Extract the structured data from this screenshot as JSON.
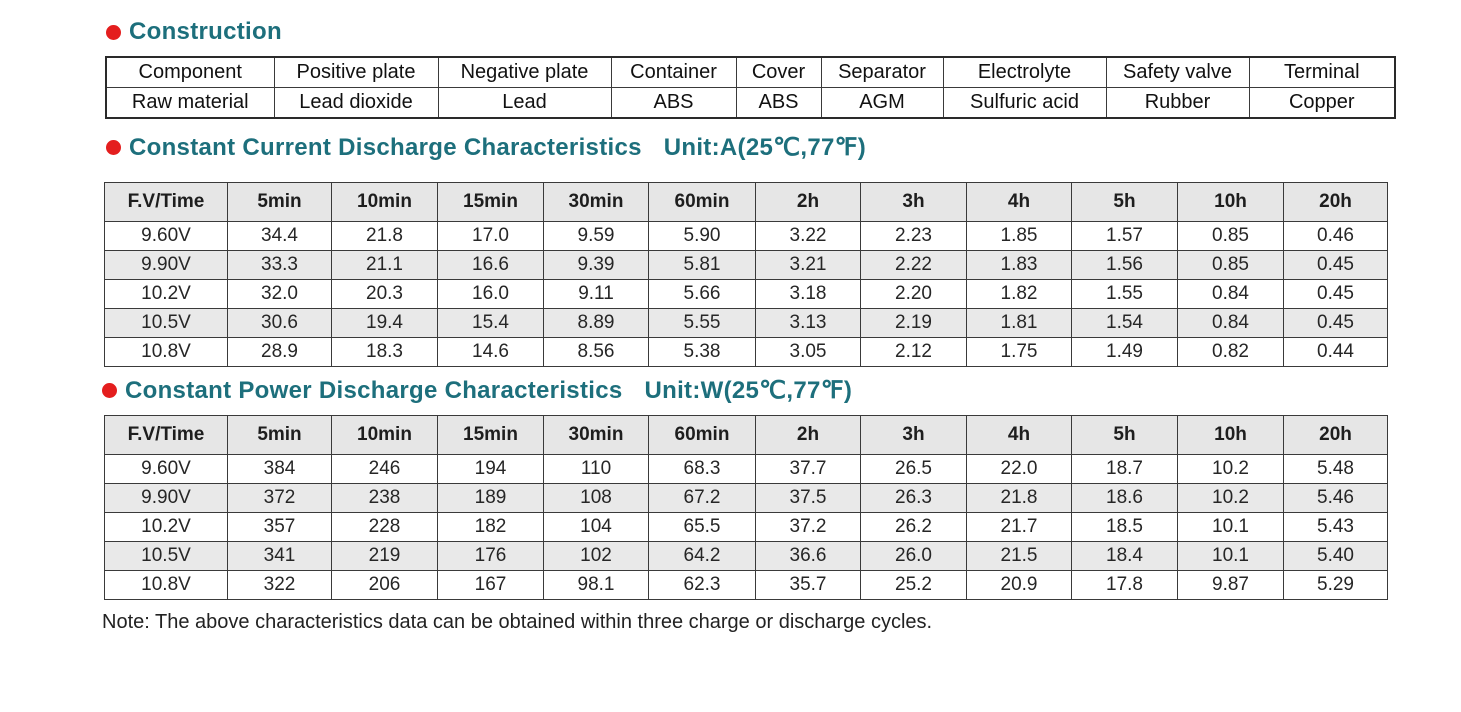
{
  "construction": {
    "title": "Construction",
    "components_header": [
      "Component",
      "Positive plate",
      "Negative plate",
      "Container",
      "Cover",
      "Separator",
      "Electrolyte",
      "Safety valve",
      "Terminal"
    ],
    "materials_row": [
      "Raw material",
      "Lead dioxide",
      "Lead",
      "ABS",
      "ABS",
      "AGM",
      "Sulfuric acid",
      "Rubber",
      "Copper"
    ]
  },
  "constant_current": {
    "title": "Constant Current Discharge Characteristics",
    "unit": "Unit:A(25℃,77℉)",
    "columns": [
      "F.V/Time",
      "5min",
      "10min",
      "15min",
      "30min",
      "60min",
      "2h",
      "3h",
      "4h",
      "5h",
      "10h",
      "20h"
    ],
    "rows": [
      [
        "9.60V",
        "34.4",
        "21.8",
        "17.0",
        "9.59",
        "5.90",
        "3.22",
        "2.23",
        "1.85",
        "1.57",
        "0.85",
        "0.46"
      ],
      [
        "9.90V",
        "33.3",
        "21.1",
        "16.6",
        "9.39",
        "5.81",
        "3.21",
        "2.22",
        "1.83",
        "1.56",
        "0.85",
        "0.45"
      ],
      [
        "10.2V",
        "32.0",
        "20.3",
        "16.0",
        "9.11",
        "5.66",
        "3.18",
        "2.20",
        "1.82",
        "1.55",
        "0.84",
        "0.45"
      ],
      [
        "10.5V",
        "30.6",
        "19.4",
        "15.4",
        "8.89",
        "5.55",
        "3.13",
        "2.19",
        "1.81",
        "1.54",
        "0.84",
        "0.45"
      ],
      [
        "10.8V",
        "28.9",
        "18.3",
        "14.6",
        "8.56",
        "5.38",
        "3.05",
        "2.12",
        "1.75",
        "1.49",
        "0.82",
        "0.44"
      ]
    ]
  },
  "constant_power": {
    "title": "Constant Power Discharge Characteristics",
    "unit": "Unit:W(25℃,77℉)",
    "columns": [
      "F.V/Time",
      "5min",
      "10min",
      "15min",
      "30min",
      "60min",
      "2h",
      "3h",
      "4h",
      "5h",
      "10h",
      "20h"
    ],
    "rows": [
      [
        "9.60V",
        "384",
        "246",
        "194",
        "110",
        "68.3",
        "37.7",
        "26.5",
        "22.0",
        "18.7",
        "10.2",
        "5.48"
      ],
      [
        "9.90V",
        "372",
        "238",
        "189",
        "108",
        "67.2",
        "37.5",
        "26.3",
        "21.8",
        "18.6",
        "10.2",
        "5.46"
      ],
      [
        "10.2V",
        "357",
        "228",
        "182",
        "104",
        "65.5",
        "37.2",
        "26.2",
        "21.7",
        "18.5",
        "10.1",
        "5.43"
      ],
      [
        "10.5V",
        "341",
        "219",
        "176",
        "102",
        "64.2",
        "36.6",
        "26.0",
        "21.5",
        "18.4",
        "10.1",
        "5.40"
      ],
      [
        "10.8V",
        "322",
        "206",
        "167",
        "98.1",
        "62.3",
        "35.7",
        "25.2",
        "20.9",
        "17.8",
        "9.87",
        "5.29"
      ]
    ]
  },
  "note": "Note: The above characteristics data can be obtained within three charge or discharge cycles.",
  "colors": {
    "title": "#1d6f7c",
    "bullet": "#e41e1e",
    "header_bg": "#e6e6e6",
    "shaded_row_bg": "#e9e9e9"
  }
}
